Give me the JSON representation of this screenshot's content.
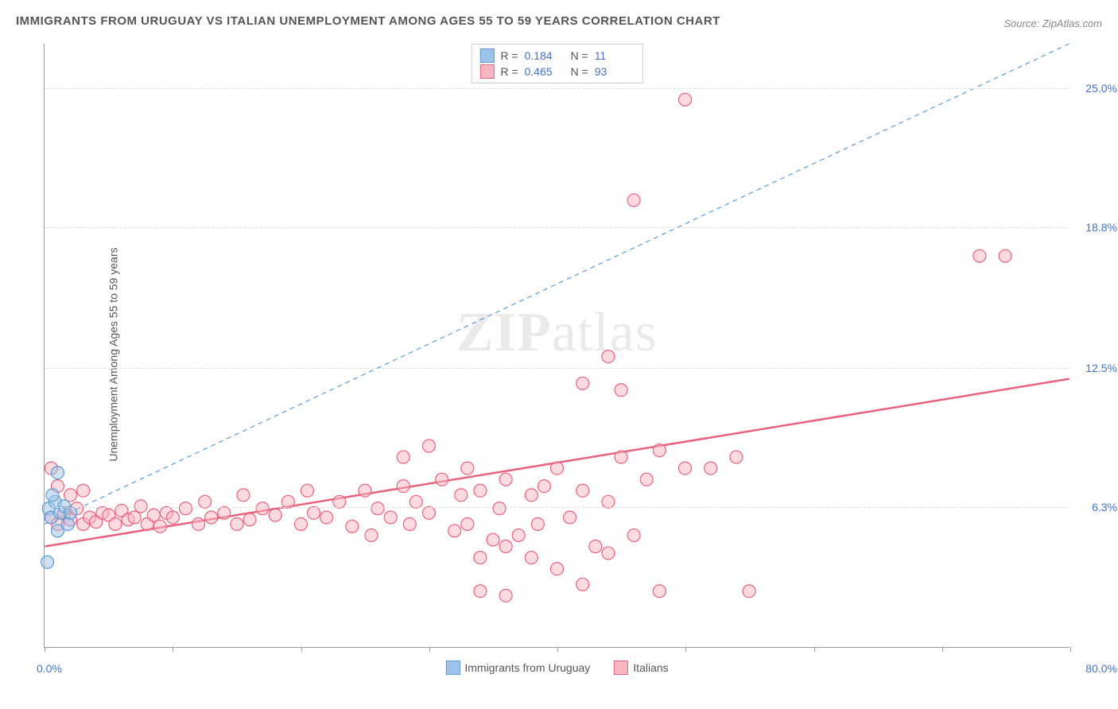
{
  "title": "IMMIGRANTS FROM URUGUAY VS ITALIAN UNEMPLOYMENT AMONG AGES 55 TO 59 YEARS CORRELATION CHART",
  "source": "Source: ZipAtlas.com",
  "ylabel": "Unemployment Among Ages 55 to 59 years",
  "watermark_a": "ZIP",
  "watermark_b": "atlas",
  "chart": {
    "type": "scatter",
    "xlim": [
      0,
      80
    ],
    "ylim": [
      0,
      27
    ],
    "x_min_label": "0.0%",
    "x_max_label": "80.0%",
    "y_ticks": [
      6.3,
      12.5,
      18.8,
      25.0
    ],
    "y_tick_labels": [
      "6.3%",
      "12.5%",
      "18.8%",
      "25.0%"
    ],
    "x_tick_positions": [
      0,
      10,
      20,
      30,
      40,
      50,
      60,
      70,
      80
    ],
    "grid_color": "#dddddd",
    "background": "#ffffff",
    "axis_color": "#999999",
    "point_radius": 8,
    "point_stroke_width": 1.2,
    "series": [
      {
        "name": "Immigrants from Uruguay",
        "fill": "#9cc3e8",
        "fill_opacity": 0.5,
        "stroke": "#5b9bd5",
        "R": "0.184",
        "N": "11",
        "trend": {
          "x1": 0,
          "y1": 5.5,
          "x2": 80,
          "y2": 27.0,
          "stroke": "#5b9bd5",
          "width": 1.2,
          "dash": "6,5"
        },
        "points": [
          [
            0.3,
            6.2
          ],
          [
            0.5,
            5.8
          ],
          [
            0.8,
            6.5
          ],
          [
            1.0,
            7.8
          ],
          [
            1.2,
            6.0
          ],
          [
            1.5,
            6.3
          ],
          [
            1.8,
            5.5
          ],
          [
            0.2,
            3.8
          ],
          [
            1.0,
            5.2
          ],
          [
            2.0,
            6.0
          ],
          [
            0.6,
            6.8
          ]
        ]
      },
      {
        "name": "Italians",
        "fill": "#f7b6c2",
        "fill_opacity": 0.5,
        "stroke": "#e8627d",
        "R": "0.465",
        "N": "93",
        "trend": {
          "x1": 0,
          "y1": 4.5,
          "x2": 80,
          "y2": 12.0,
          "stroke": "#e8627d",
          "width": 2.5,
          "dash": ""
        },
        "points": [
          [
            0.5,
            5.8
          ],
          [
            1.0,
            5.5
          ],
          [
            1.5,
            6.0
          ],
          [
            2.0,
            5.7
          ],
          [
            2.5,
            6.2
          ],
          [
            3.0,
            5.5
          ],
          [
            3.5,
            5.8
          ],
          [
            4.0,
            5.6
          ],
          [
            4.5,
            6.0
          ],
          [
            5.0,
            5.9
          ],
          [
            5.5,
            5.5
          ],
          [
            6.0,
            6.1
          ],
          [
            6.5,
            5.7
          ],
          [
            7.0,
            5.8
          ],
          [
            7.5,
            6.3
          ],
          [
            8.0,
            5.5
          ],
          [
            8.5,
            5.9
          ],
          [
            9.0,
            5.4
          ],
          [
            9.5,
            6.0
          ],
          [
            10.0,
            5.8
          ],
          [
            11.0,
            6.2
          ],
          [
            12.0,
            5.5
          ],
          [
            12.5,
            6.5
          ],
          [
            13.0,
            5.8
          ],
          [
            14.0,
            6.0
          ],
          [
            15.0,
            5.5
          ],
          [
            15.5,
            6.8
          ],
          [
            16.0,
            5.7
          ],
          [
            17.0,
            6.2
          ],
          [
            18.0,
            5.9
          ],
          [
            19.0,
            6.5
          ],
          [
            20.0,
            5.5
          ],
          [
            20.5,
            7.0
          ],
          [
            21.0,
            6.0
          ],
          [
            22.0,
            5.8
          ],
          [
            23.0,
            6.5
          ],
          [
            24.0,
            5.4
          ],
          [
            25.0,
            7.0
          ],
          [
            25.5,
            5.0
          ],
          [
            26.0,
            6.2
          ],
          [
            27.0,
            5.8
          ],
          [
            28.0,
            7.2
          ],
          [
            28.5,
            5.5
          ],
          [
            29.0,
            6.5
          ],
          [
            30.0,
            6.0
          ],
          [
            31.0,
            7.5
          ],
          [
            32.0,
            5.2
          ],
          [
            32.5,
            6.8
          ],
          [
            33.0,
            5.5
          ],
          [
            34.0,
            7.0
          ],
          [
            35.0,
            4.8
          ],
          [
            35.5,
            6.2
          ],
          [
            36.0,
            7.5
          ],
          [
            37.0,
            5.0
          ],
          [
            38.0,
            6.8
          ],
          [
            38.5,
            5.5
          ],
          [
            39.0,
            7.2
          ],
          [
            30.0,
            9.0
          ],
          [
            28.0,
            8.5
          ],
          [
            33.0,
            8.0
          ],
          [
            40.0,
            8.0
          ],
          [
            41.0,
            5.8
          ],
          [
            42.0,
            7.0
          ],
          [
            43.0,
            4.5
          ],
          [
            44.0,
            6.5
          ],
          [
            45.0,
            8.5
          ],
          [
            46.0,
            5.0
          ],
          [
            47.0,
            7.5
          ],
          [
            48.0,
            8.8
          ],
          [
            50.0,
            8.0
          ],
          [
            34.0,
            2.5
          ],
          [
            36.0,
            2.3
          ],
          [
            38.0,
            4.0
          ],
          [
            40.0,
            3.5
          ],
          [
            42.0,
            2.8
          ],
          [
            44.0,
            4.2
          ],
          [
            34.0,
            4.0
          ],
          [
            36.0,
            4.5
          ],
          [
            48.0,
            2.5
          ],
          [
            55.0,
            2.5
          ],
          [
            42.0,
            11.8
          ],
          [
            45.0,
            11.5
          ],
          [
            44.0,
            13.0
          ],
          [
            46.0,
            20.0
          ],
          [
            50.0,
            24.5
          ],
          [
            52.0,
            8.0
          ],
          [
            54.0,
            8.5
          ],
          [
            73.0,
            17.5
          ],
          [
            75.0,
            17.5
          ],
          [
            0.5,
            8.0
          ],
          [
            1.0,
            7.2
          ],
          [
            2.0,
            6.8
          ],
          [
            3.0,
            7.0
          ]
        ]
      }
    ]
  },
  "bottom_legend": {
    "a_label": "Immigrants from Uruguay",
    "b_label": "Italians"
  }
}
